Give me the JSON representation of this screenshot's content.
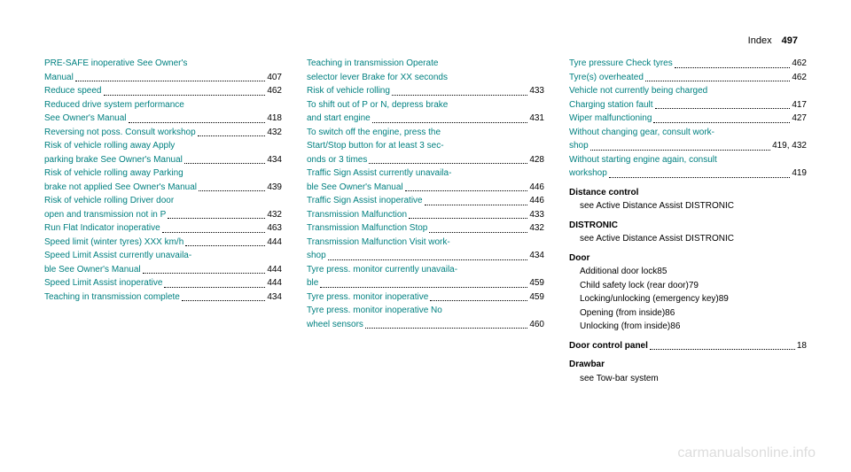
{
  "header": {
    "label": "Index",
    "page": "497"
  },
  "col1": [
    {
      "type": "cont",
      "text": "PRE-SAFE inoperative See Owner's"
    },
    {
      "type": "entry",
      "text": "Manual",
      "pg": "407"
    },
    {
      "type": "entry",
      "text": "Reduce speed",
      "pg": "462"
    },
    {
      "type": "cont",
      "text": "Reduced drive system performance"
    },
    {
      "type": "entry",
      "text": "See Owner's Manual",
      "pg": "418"
    },
    {
      "type": "entry",
      "text": "Reversing not poss. Consult workshop",
      "pg": "432"
    },
    {
      "type": "cont",
      "text": "Risk of vehicle rolling away Apply"
    },
    {
      "type": "entry",
      "text": "parking brake See Owner's Manual",
      "pg": "434"
    },
    {
      "type": "cont",
      "text": "Risk of vehicle rolling away Parking"
    },
    {
      "type": "entry",
      "text": "brake not applied See Owner's Manual",
      "pg": "439"
    },
    {
      "type": "cont",
      "text": "Risk of vehicle rolling Driver door"
    },
    {
      "type": "entry",
      "text": "open and transmission not in P",
      "pg": "432"
    },
    {
      "type": "entry",
      "text": "Run Flat Indicator inoperative",
      "pg": "463"
    },
    {
      "type": "entry",
      "text": "Speed limit (winter tyres) XXX km/h",
      "pg": "444"
    },
    {
      "type": "cont",
      "text": "Speed Limit Assist currently unavaila-"
    },
    {
      "type": "entry",
      "text": "ble See Owner's Manual",
      "pg": "444"
    },
    {
      "type": "entry",
      "text": "Speed Limit Assist inoperative",
      "pg": "444"
    },
    {
      "type": "entry",
      "text": "Teaching in transmission complete",
      "pg": "434"
    }
  ],
  "col2": [
    {
      "type": "cont",
      "text": "Teaching in transmission Operate"
    },
    {
      "type": "cont",
      "text": "selector lever Brake for XX seconds"
    },
    {
      "type": "entry",
      "text": "Risk of vehicle rolling",
      "pg": "433"
    },
    {
      "type": "cont",
      "text": "To shift out of P or N, depress brake"
    },
    {
      "type": "entry",
      "text": "and start engine",
      "pg": "431"
    },
    {
      "type": "cont",
      "text": "To switch off the engine, press the"
    },
    {
      "type": "cont",
      "text": "Start/Stop button for at least 3 sec-"
    },
    {
      "type": "entry",
      "text": "onds or 3 times",
      "pg": "428"
    },
    {
      "type": "cont",
      "text": "Traffic Sign Assist currently unavaila-"
    },
    {
      "type": "entry",
      "text": "ble See Owner's Manual",
      "pg": "446"
    },
    {
      "type": "entry",
      "text": "Traffic Sign Assist inoperative",
      "pg": "446"
    },
    {
      "type": "entry",
      "text": "Transmission Malfunction",
      "pg": "433"
    },
    {
      "type": "entry",
      "text": "Transmission Malfunction Stop",
      "pg": "432"
    },
    {
      "type": "cont",
      "text": "Transmission Malfunction Visit work-"
    },
    {
      "type": "entry",
      "text": "shop",
      "pg": "434"
    },
    {
      "type": "cont",
      "text": "Tyre press. monitor currently unavaila-"
    },
    {
      "type": "entry",
      "text": "ble",
      "pg": "459"
    },
    {
      "type": "entry",
      "text": "Tyre press. monitor inoperative",
      "pg": "459"
    },
    {
      "type": "cont",
      "text": "Tyre press. monitor inoperative No"
    },
    {
      "type": "entry",
      "text": "wheel sensors",
      "pg": "460"
    }
  ],
  "col3": [
    {
      "type": "entry",
      "text": "Tyre pressure Check tyres",
      "pg": "462"
    },
    {
      "type": "entry",
      "text": "Tyre(s) overheated",
      "pg": "462"
    },
    {
      "type": "cont",
      "text": "Vehicle not currently being charged"
    },
    {
      "type": "entry",
      "text": "Charging station fault",
      "pg": "417"
    },
    {
      "type": "entry",
      "text": "Wiper malfunctioning",
      "pg": "427"
    },
    {
      "type": "cont",
      "text": "Without changing gear, consult work-"
    },
    {
      "type": "entry",
      "text": "shop",
      "pg": "419, 432"
    },
    {
      "type": "cont",
      "text": "Without starting engine again, consult"
    },
    {
      "type": "entry",
      "text": "workshop",
      "pg": "419"
    },
    {
      "type": "heading",
      "text": "Distance control"
    },
    {
      "type": "sub",
      "text": "see Active Distance Assist DISTRONIC"
    },
    {
      "type": "heading",
      "text": "DISTRONIC"
    },
    {
      "type": "sub",
      "text": "see Active Distance Assist DISTRONIC"
    },
    {
      "type": "heading",
      "text": "Door"
    },
    {
      "type": "subentry",
      "text": "Additional door lock",
      "pg": "85"
    },
    {
      "type": "subentry",
      "text": "Child safety lock (rear door)",
      "pg": "79"
    },
    {
      "type": "subentry",
      "text": "Locking/unlocking (emergency key)",
      "pg": "89"
    },
    {
      "type": "subentry",
      "text": "Opening (from inside)",
      "pg": "86"
    },
    {
      "type": "subentry",
      "text": "Unlocking (from inside)",
      "pg": "86"
    },
    {
      "type": "heading-entry",
      "text": "Door control panel",
      "pg": "18"
    },
    {
      "type": "heading",
      "text": "Drawbar"
    },
    {
      "type": "sub",
      "text": "see Tow-bar system"
    }
  ],
  "watermark": "carmanualsonline.info"
}
